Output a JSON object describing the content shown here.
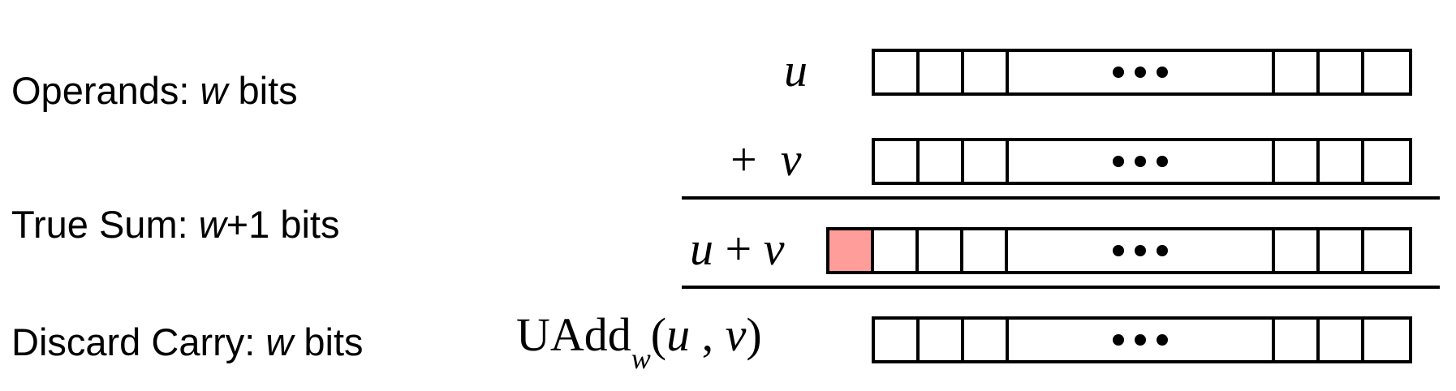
{
  "labels": {
    "operands": {
      "prefix": "Operands: ",
      "var": "w",
      "suffix": " bits"
    },
    "true_sum": {
      "prefix": "True Sum: ",
      "var": "w",
      "suffix": "+1 bits"
    },
    "discard": {
      "prefix": "Discard Carry: ",
      "var": "w",
      "suffix": " bits"
    }
  },
  "math": {
    "u": "u",
    "plus": "+",
    "v": "v",
    "uadd_name": "UAdd",
    "uadd_sub": "w",
    "open_paren": "(",
    "comma": " , ",
    "close_paren": ")"
  },
  "colors": {
    "carry_bit": "#ff9d9a"
  }
}
